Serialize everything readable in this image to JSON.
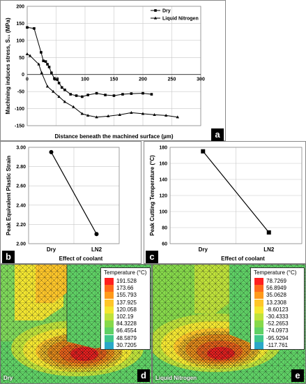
{
  "chart_data": [
    {
      "panel": "a",
      "type": "line",
      "xlabel": "Distance beneath the machined surface (µm)",
      "ylabel": "Machining induces stress, S₁₁ (MPa)",
      "xlim": [
        0,
        300
      ],
      "ylim": [
        -150,
        200
      ],
      "xticks": [
        0,
        50,
        100,
        150,
        200,
        250,
        300
      ],
      "yticks": [
        -150,
        -100,
        -50,
        0,
        50,
        100,
        150,
        200
      ],
      "xtick_labels": [
        "0",
        "50",
        "100",
        "150",
        "200",
        "250",
        "300"
      ],
      "ytick_labels": [
        "-150",
        "-100",
        "-50",
        "0",
        "50",
        "100",
        "150",
        "200"
      ],
      "grid": true,
      "legend_position": "top-right",
      "series": [
        {
          "name": "Dry",
          "marker": "square",
          "x": [
            0,
            12,
            24,
            28,
            32,
            35,
            38,
            42,
            47,
            52,
            55,
            60,
            65,
            75,
            85,
            95,
            105,
            120,
            135,
            150,
            165,
            180,
            200,
            215
          ],
          "y": [
            138,
            135,
            65,
            40,
            38,
            30,
            22,
            5,
            -12,
            -15,
            -25,
            -38,
            -45,
            -58,
            -62,
            -65,
            -60,
            -55,
            -60,
            -62,
            -58,
            -56,
            -55,
            -58
          ]
        },
        {
          "name": "Liquid Nitrogen",
          "marker": "triangle",
          "x": [
            0,
            5,
            20,
            25,
            35,
            45,
            55,
            65,
            80,
            95,
            105,
            120,
            140,
            160,
            180,
            200,
            220,
            240,
            260
          ],
          "y": [
            60,
            55,
            30,
            5,
            -35,
            -50,
            -65,
            -80,
            -95,
            -115,
            -120,
            -125,
            -122,
            -118,
            -112,
            -115,
            -118,
            -120,
            -125
          ]
        }
      ]
    },
    {
      "panel": "b",
      "type": "line",
      "categories": [
        "Dry",
        "LN2"
      ],
      "values": [
        2.95,
        2.1
      ],
      "xlabel": "Effect of coolant",
      "ylabel": "Peak Equivalent Plastic Strain",
      "ylim": [
        2.0,
        3.0
      ],
      "ytick_labels": [
        "2.00",
        "2.20",
        "2.40",
        "2.60",
        "2.80",
        "3.00"
      ],
      "grid": true,
      "marker": "circle"
    },
    {
      "panel": "c",
      "type": "line",
      "categories": [
        "Dry",
        "LN2"
      ],
      "values": [
        175,
        74
      ],
      "xlabel": "Effect of coolant",
      "ylabel": "Peak Cutting Temperature (°C)",
      "ylim": [
        60,
        180
      ],
      "ytick_labels": [
        "60",
        "80",
        "100",
        "120",
        "140",
        "160",
        "180"
      ],
      "grid": true,
      "marker": "square"
    }
  ],
  "panel_labels": {
    "a": "a",
    "b": "b",
    "c": "c",
    "d": "d",
    "e": "e"
  },
  "simulations": [
    {
      "panel": "d",
      "label": "Dry",
      "legend_title": "Temperature (°C)",
      "legend_values": [
        "191.528",
        "173.66",
        "155.793",
        "137.925",
        "120.058",
        "102.19",
        "84.3228",
        "66.4554",
        "48.5879",
        "30.7205"
      ],
      "legend_colors": [
        "#ff1f1f",
        "#ff6a1a",
        "#ff9a1a",
        "#ffc629",
        "#f4e730",
        "#bfe23a",
        "#86d94a",
        "#5fd165",
        "#3fc78a",
        "#2aa8c8"
      ]
    },
    {
      "panel": "e",
      "label": "Liquid Nitrogen",
      "legend_title": "Temperature (°C)",
      "legend_values": [
        "78.7269",
        "56.8949",
        "35.0628",
        "13.2308",
        "-8.60123",
        "-30.4333",
        "-52.2653",
        "-74.0973",
        "-95.9294",
        "-117.761"
      ],
      "legend_colors": [
        "#ff1f1f",
        "#ff6a1a",
        "#ff9a1a",
        "#ffc629",
        "#f4e730",
        "#bfe23a",
        "#86d94a",
        "#5fd165",
        "#3fc78a",
        "#2aa8c8"
      ]
    }
  ]
}
